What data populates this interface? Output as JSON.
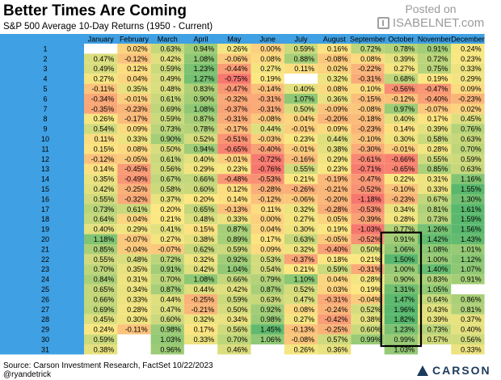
{
  "header": {
    "title": "Better Times Are Coming",
    "subtitle": "S&P 500 Average 10-Day Returns (1950 - Current)"
  },
  "watermark": {
    "posted": "Posted on",
    "site": "ISABELNET.com"
  },
  "footer": {
    "source": "Source: Carson Investment Research, FactSet 10/22/2023",
    "handle": "@ryandetrick",
    "logo": "CARSON"
  },
  "colors": {
    "header_bg": "#3fa0e3",
    "red": "#f7776f",
    "yellow": "#fde882",
    "green": "#59b86e",
    "highlight_box": "#000000"
  },
  "chart_data": {
    "type": "heatmap",
    "title": "Better Times Are Coming",
    "subtitle": "S&P 500 Average 10-Day Returns (1950 - Current)",
    "columns": [
      "January",
      "February",
      "March",
      "April",
      "May",
      "June",
      "July",
      "August",
      "September",
      "October",
      "November",
      "December"
    ],
    "rows": [
      "1",
      "2",
      "3",
      "4",
      "5",
      "6",
      "7",
      "8",
      "9",
      "10",
      "11",
      "12",
      "13",
      "14",
      "15",
      "16",
      "17",
      "18",
      "19",
      "20",
      "21",
      "22",
      "23",
      "24",
      "25",
      "26",
      "27",
      "28",
      "29",
      "30",
      "31"
    ],
    "values": [
      [
        null,
        0.02,
        0.63,
        0.94,
        0.26,
        0.0,
        0.59,
        0.16,
        0.72,
        0.78,
        0.91,
        0.24
      ],
      [
        0.47,
        -0.12,
        0.42,
        1.08,
        -0.06,
        0.08,
        0.88,
        -0.08,
        0.08,
        0.39,
        0.72,
        0.23
      ],
      [
        0.49,
        0.12,
        0.59,
        1.23,
        -0.44,
        0.27,
        0.11,
        0.02,
        -0.22,
        0.27,
        0.75,
        0.33
      ],
      [
        0.27,
        0.04,
        0.49,
        1.27,
        -0.75,
        0.19,
        null,
        0.32,
        -0.31,
        0.68,
        0.19,
        0.29
      ],
      [
        -0.11,
        0.35,
        0.48,
        0.83,
        -0.47,
        -0.14,
        0.4,
        0.08,
        0.1,
        -0.56,
        -0.47,
        0.09
      ],
      [
        -0.34,
        -0.01,
        0.61,
        0.9,
        -0.32,
        -0.31,
        1.07,
        0.36,
        -0.15,
        -0.12,
        -0.4,
        -0.23
      ],
      [
        -0.35,
        -0.23,
        0.69,
        1.08,
        -0.37,
        -0.31,
        0.5,
        -0.09,
        -0.08,
        0.97,
        -0.07,
        0.02
      ],
      [
        0.26,
        -0.17,
        0.59,
        0.87,
        -0.31,
        -0.08,
        0.04,
        -0.2,
        -0.18,
        0.4,
        0.17,
        0.45
      ],
      [
        0.54,
        0.09,
        0.73,
        0.78,
        -0.17,
        0.44,
        -0.01,
        0.09,
        -0.23,
        0.14,
        0.39,
        0.76
      ],
      [
        0.11,
        0.33,
        0.9,
        0.52,
        -0.51,
        -0.03,
        0.23,
        0.44,
        -0.1,
        0.3,
        0.58,
        0.63
      ],
      [
        0.15,
        0.08,
        0.5,
        0.94,
        -0.65,
        -0.4,
        -0.01,
        0.38,
        -0.3,
        -0.01,
        0.28,
        0.7
      ],
      [
        -0.12,
        -0.05,
        0.61,
        0.4,
        -0.01,
        -0.72,
        -0.16,
        0.29,
        -0.61,
        -0.66,
        0.55,
        0.59
      ],
      [
        0.14,
        -0.45,
        0.56,
        0.29,
        0.23,
        -0.76,
        0.55,
        0.23,
        -0.71,
        -0.65,
        0.85,
        0.63
      ],
      [
        0.35,
        -0.49,
        0.67,
        0.66,
        -0.48,
        -0.53,
        0.21,
        -0.19,
        -0.47,
        0.22,
        0.31,
        1.16
      ],
      [
        0.42,
        -0.25,
        0.58,
        0.6,
        0.12,
        -0.28,
        -0.26,
        -0.21,
        -0.52,
        -0.1,
        0.33,
        1.55
      ],
      [
        0.55,
        -0.32,
        0.37,
        0.2,
        0.14,
        -0.12,
        -0.06,
        -0.2,
        -1.18,
        -0.23,
        0.67,
        1.3
      ],
      [
        0.73,
        0.61,
        0.2,
        0.65,
        -0.13,
        0.11,
        0.32,
        -0.28,
        -0.53,
        0.34,
        0.81,
        1.61
      ],
      [
        0.64,
        0.04,
        0.21,
        0.48,
        0.33,
        0.0,
        0.27,
        0.05,
        -0.39,
        0.28,
        0.73,
        1.59
      ],
      [
        0.4,
        0.29,
        0.41,
        0.15,
        0.87,
        0.04,
        0.3,
        0.19,
        -1.03,
        0.77,
        1.26,
        1.56
      ],
      [
        1.18,
        -0.07,
        0.27,
        0.38,
        0.89,
        0.17,
        0.63,
        -0.05,
        -0.52,
        0.91,
        1.42,
        1.43
      ],
      [
        0.85,
        -0.04,
        -0.07,
        0.62,
        0.59,
        0.09,
        0.32,
        -0.4,
        0.5,
        1.06,
        1.08,
        1.01
      ],
      [
        0.55,
        0.48,
        0.72,
        0.32,
        0.92,
        0.53,
        -0.37,
        0.18,
        0.21,
        1.5,
        1.0,
        1.12
      ],
      [
        0.7,
        0.35,
        0.91,
        0.42,
        1.04,
        0.54,
        0.21,
        0.59,
        -0.31,
        1.0,
        1.4,
        1.07
      ],
      [
        0.84,
        0.31,
        0.7,
        1.08,
        0.66,
        0.79,
        1.1,
        0.04,
        0.28,
        0.9,
        0.83,
        0.91
      ],
      [
        0.65,
        0.34,
        0.87,
        0.44,
        0.42,
        0.87,
        0.52,
        0.03,
        0.19,
        1.31,
        1.05,
        null
      ],
      [
        0.66,
        0.33,
        0.44,
        -0.25,
        0.59,
        0.63,
        0.47,
        -0.31,
        -0.04,
        1.47,
        0.64,
        0.86
      ],
      [
        0.69,
        0.28,
        0.47,
        -0.21,
        0.5,
        0.92,
        0.08,
        -0.24,
        0.52,
        1.96,
        0.43,
        0.81
      ],
      [
        0.45,
        0.3,
        0.6,
        0.32,
        0.34,
        0.98,
        0.27,
        -0.42,
        0.38,
        1.82,
        0.39,
        0.37
      ],
      [
        0.24,
        -0.11,
        0.98,
        0.17,
        0.56,
        1.45,
        -0.13,
        -0.25,
        0.6,
        1.23,
        0.73,
        0.4
      ],
      [
        0.59,
        null,
        1.03,
        0.33,
        0.7,
        1.06,
        -0.08,
        0.57,
        0.99,
        0.99,
        0.57,
        0.56
      ],
      [
        0.38,
        null,
        0.96,
        null,
        0.46,
        null,
        0.26,
        0.36,
        null,
        1.03,
        null,
        0.33
      ]
    ],
    "value_format": "percent_2dp",
    "color_scale": {
      "low": -0.75,
      "mid": 0.2,
      "high": 1.5
    },
    "highlight": {
      "column": "October",
      "from_row": "20",
      "to_row": "30"
    }
  }
}
